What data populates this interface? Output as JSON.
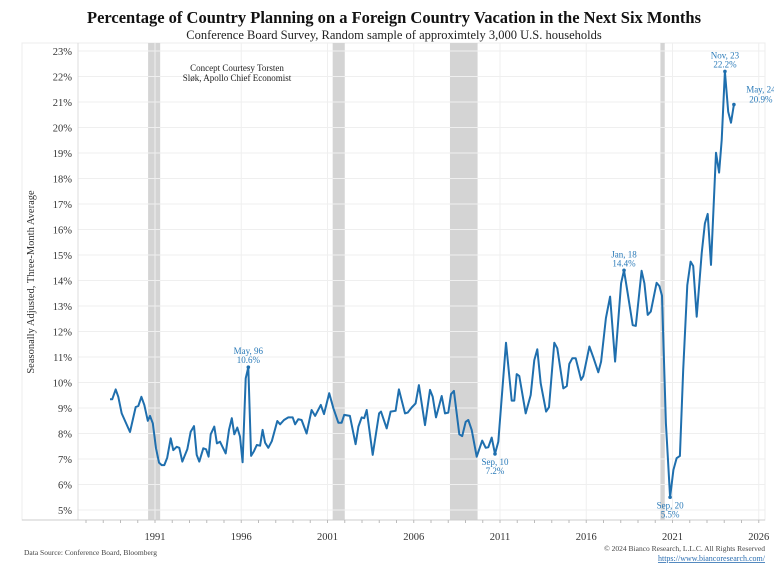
{
  "chart_data": {
    "type": "line",
    "title": "Percentage of Country Planning on a Foreign Country Vacation in the Next Six Months",
    "subtitle": "Conference Board Survey, Random sample of approximtely 3,000 U.S. households",
    "ylabel": "Seasonally Adjusted, Three-Month Average",
    "xlabel": "",
    "xlim": [
      1986.4,
      2026.3
    ],
    "ylim": [
      4.6,
      23.4
    ],
    "x_ticks": [
      1991,
      1996,
      2001,
      2006,
      2011,
      2016,
      2021,
      2026
    ],
    "x_tick_labels": [
      "1991",
      "1996",
      "2001",
      "2006",
      "2011",
      "2016",
      "2021",
      "2026"
    ],
    "y_ticks": [
      5,
      6,
      7,
      8,
      9,
      10,
      11,
      12,
      13,
      14,
      15,
      16,
      17,
      18,
      19,
      20,
      21,
      22,
      23
    ],
    "y_tick_labels": [
      "5%",
      "6%",
      "7%",
      "8%",
      "9%",
      "10%",
      "11%",
      "12%",
      "13%",
      "14%",
      "15%",
      "16%",
      "17%",
      "18%",
      "19%",
      "20%",
      "21%",
      "22%",
      "23%"
    ],
    "grid": true,
    "line_color": "#1f6fae",
    "recession_color": "#d4d4d4",
    "recessions": [
      [
        1990.6,
        1991.3
      ],
      [
        2001.3,
        2002.0
      ],
      [
        2008.1,
        2009.7
      ],
      [
        2020.3,
        2020.55
      ]
    ],
    "series": [
      {
        "x": [
          1988.39,
          1988.52,
          1988.72,
          1988.87,
          1989.07,
          1989.55,
          1989.88,
          1990.03,
          1990.21,
          1990.38,
          1990.58,
          1990.71,
          1990.87,
          1991.06,
          1991.23,
          1991.39,
          1991.54,
          1991.71,
          1991.91,
          1992.06,
          1992.26,
          1992.41,
          1992.58,
          1992.87,
          1993.07,
          1993.26,
          1993.42,
          1993.57,
          1993.8,
          1993.96,
          1994.11,
          1994.23,
          1994.44,
          1994.59,
          1994.77,
          1995.1,
          1995.29,
          1995.45,
          1995.6,
          1995.77,
          1995.93,
          1996.08,
          1996.26,
          1996.41,
          1996.57,
          1996.74,
          1996.9,
          1997.09,
          1997.24,
          1997.38,
          1997.57,
          1997.77,
          1998.09,
          1998.25,
          1998.48,
          1998.73,
          1998.98,
          1999.12,
          1999.31,
          1999.5,
          1999.79,
          2000.08,
          2000.28,
          2000.61,
          2000.8,
          2001.1,
          2001.34,
          2001.63,
          2001.82,
          2001.97,
          2002.3,
          2002.63,
          2002.79,
          2002.98,
          2003.13,
          2003.27,
          2003.62,
          2003.99,
          2004.1,
          2004.43,
          2004.66,
          2004.95,
          2005.14,
          2005.49,
          2005.65,
          2005.88,
          2006.11,
          2006.3,
          2006.65,
          2006.94,
          2007.1,
          2007.29,
          2007.62,
          2007.81,
          2008.0,
          2008.16,
          2008.33,
          2008.64,
          2008.81,
          2009.01,
          2009.16,
          2009.36,
          2009.65,
          2009.97,
          2010.17,
          2010.32,
          2010.52,
          2010.71,
          2010.9,
          2011.35,
          2011.68,
          2011.83,
          2011.97,
          2012.12,
          2012.49,
          2012.78,
          2012.99,
          2013.16,
          2013.36,
          2013.67,
          2013.84,
          2014.15,
          2014.32,
          2014.67,
          2014.87,
          2015.02,
          2015.19,
          2015.39,
          2015.7,
          2015.83,
          2016.18,
          2016.41,
          2016.7,
          2016.86,
          2017.14,
          2017.38,
          2017.67,
          2018.02,
          2018.19,
          2018.4,
          2018.69,
          2018.87,
          2019.21,
          2019.37,
          2019.56,
          2019.74,
          2020.08,
          2020.24,
          2020.39,
          2020.62,
          2020.86,
          2021.05,
          2021.24,
          2021.43,
          2021.62,
          2021.86,
          2022.05,
          2022.2,
          2022.4,
          2022.69,
          2022.88,
          2023.04,
          2023.23,
          2023.52,
          2023.7,
          2023.85,
          2024.04,
          2024.23,
          2024.39,
          2024.56
        ],
        "y": [
          9.34,
          9.34,
          9.73,
          9.44,
          8.79,
          8.06,
          9.04,
          9.08,
          9.44,
          9.12,
          8.5,
          8.69,
          8.4,
          7.42,
          6.86,
          6.76,
          6.76,
          7.05,
          7.81,
          7.35,
          7.48,
          7.44,
          6.9,
          7.38,
          8.07,
          8.29,
          7.16,
          6.9,
          7.42,
          7.38,
          7.09,
          7.97,
          8.27,
          7.61,
          7.68,
          7.22,
          8.14,
          8.6,
          7.97,
          8.23,
          7.88,
          6.87,
          10.16,
          10.6,
          7.12,
          7.31,
          7.55,
          7.52,
          8.14,
          7.64,
          7.44,
          7.7,
          8.49,
          8.36,
          8.53,
          8.63,
          8.63,
          8.36,
          8.56,
          8.53,
          8.0,
          8.92,
          8.69,
          9.12,
          8.76,
          9.58,
          8.99,
          8.42,
          8.42,
          8.73,
          8.69,
          7.58,
          8.27,
          8.63,
          8.6,
          8.92,
          7.16,
          8.79,
          8.86,
          8.2,
          8.86,
          8.89,
          9.73,
          8.79,
          8.82,
          9.02,
          9.18,
          9.9,
          8.33,
          9.71,
          9.44,
          8.63,
          9.47,
          8.79,
          8.82,
          9.54,
          9.67,
          7.97,
          7.9,
          8.46,
          8.53,
          8.14,
          7.09,
          7.72,
          7.44,
          7.46,
          7.84,
          7.2,
          7.68,
          11.56,
          9.29,
          9.29,
          10.33,
          10.25,
          8.79,
          9.51,
          10.88,
          11.3,
          9.97,
          8.86,
          9.03,
          11.56,
          11.34,
          9.77,
          9.86,
          10.73,
          10.95,
          10.95,
          10.1,
          10.25,
          11.41,
          10.99,
          10.4,
          10.82,
          12.52,
          13.37,
          10.82,
          13.89,
          14.4,
          13.5,
          12.25,
          12.22,
          14.38,
          13.89,
          12.65,
          12.78,
          13.91,
          13.78,
          13.4,
          8.4,
          5.5,
          6.57,
          7.03,
          7.12,
          10.5,
          13.82,
          14.74,
          14.57,
          12.58,
          15.07,
          16.24,
          16.61,
          14.61,
          19.01,
          18.23,
          19.51,
          22.2,
          20.62,
          20.19,
          20.9
        ]
      }
    ],
    "annotations": [
      {
        "date": "May, 96",
        "value": "10.6%",
        "x": 1996.41,
        "y": 10.6,
        "pos": "above"
      },
      {
        "date": "Sep, 10",
        "value": "7.2%",
        "x": 2010.71,
        "y": 7.2,
        "pos": "below"
      },
      {
        "date": "Jan, 18",
        "value": "14.4%",
        "x": 2018.19,
        "y": 14.4,
        "pos": "above"
      },
      {
        "date": "Sep, 20",
        "value": "5.5%",
        "x": 2020.86,
        "y": 5.5,
        "pos": "below"
      },
      {
        "date": "Nov, 23",
        "value": "22.2%",
        "x": 2024.04,
        "y": 22.2,
        "pos": "above"
      },
      {
        "date": "May, 24",
        "value": "20.9%",
        "x": 2024.56,
        "y": 20.9,
        "pos": "right"
      }
    ],
    "note": [
      "Concept Courtesy Torsten",
      "Sløk, Apollo Chief Economist"
    ]
  },
  "footer": {
    "source": "Data Source: Conference Board, Bloomberg",
    "copyright": "© 2024 Bianco Research, L.L.C. All Rights Reserved",
    "url": "https://www.biancoresearch.com/"
  }
}
